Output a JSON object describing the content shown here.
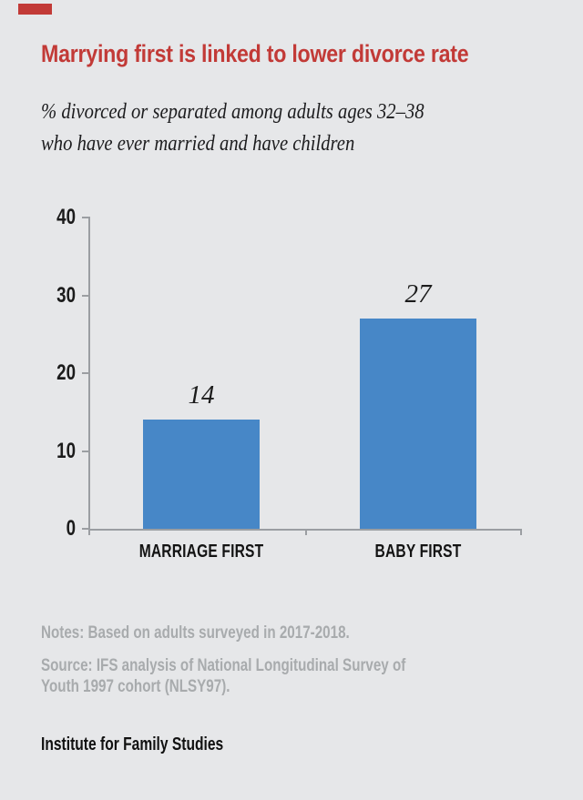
{
  "colors": {
    "background": "#e6e7e9",
    "accent_red": "#c23a37",
    "bar_blue": "#4787c7",
    "note_gray": "#a8abad",
    "text_dark": "#1c1c1e",
    "axis_gray": "#9b9ea2"
  },
  "header": {
    "title": "Marrying first is linked to lower divorce rate",
    "subtitle_line1": "% divorced or separated among adults ages 32–38",
    "subtitle_line2": "who have ever married and have children"
  },
  "chart_data": {
    "type": "bar",
    "title": "Marrying first is linked to lower divorce rate",
    "subtitle": "% divorced or separated among adults ages 32–38 who have ever married and have children",
    "categories": [
      "MARRIAGE FIRST",
      "BABY FIRST"
    ],
    "values": [
      14,
      27
    ],
    "value_labels": [
      "14",
      "27"
    ],
    "ylim": [
      0,
      40
    ],
    "yticks": [
      40,
      30,
      20,
      10,
      0
    ],
    "ytick_labels": [
      "40",
      "30",
      "20",
      "10",
      "0"
    ],
    "xlabel": "",
    "ylabel": "",
    "grid": false,
    "legend": "none",
    "bar_color": "#4787c7"
  },
  "footer": {
    "notes": "Notes: Based on adults surveyed in 2017-2018.",
    "source_line1": "Source: IFS analysis of National Longitudinal Survey of",
    "source_line2": "Youth 1997 cohort (NLSY97).",
    "org": "Institute for Family Studies"
  }
}
